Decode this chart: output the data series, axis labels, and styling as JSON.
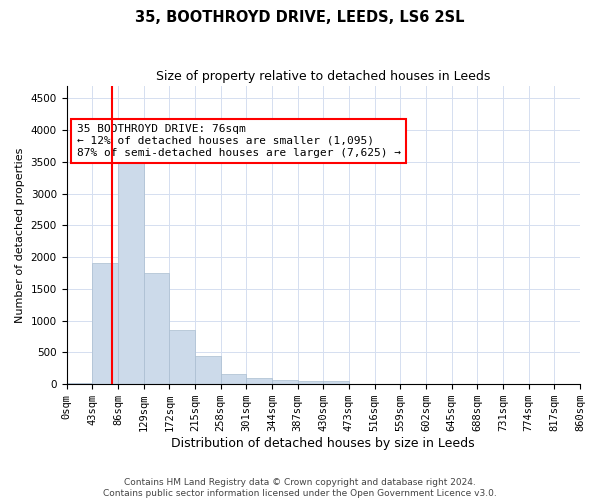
{
  "title_line1": "35, BOOTHROYD DRIVE, LEEDS, LS6 2SL",
  "title_line2": "Size of property relative to detached houses in Leeds",
  "xlabel": "Distribution of detached houses by size in Leeds",
  "ylabel": "Number of detached properties",
  "bar_values": [
    20,
    1900,
    3500,
    1750,
    850,
    440,
    155,
    95,
    65,
    55,
    45,
    0,
    0,
    0,
    0,
    0,
    0,
    0,
    0,
    0
  ],
  "bin_labels": [
    "0sqm",
    "43sqm",
    "86sqm",
    "129sqm",
    "172sqm",
    "215sqm",
    "258sqm",
    "301sqm",
    "344sqm",
    "387sqm",
    "430sqm",
    "473sqm",
    "516sqm",
    "559sqm",
    "602sqm",
    "645sqm",
    "688sqm",
    "731sqm",
    "774sqm",
    "817sqm",
    "860sqm"
  ],
  "bar_color": "#ccdaea",
  "bar_edge_color": "#aabdd0",
  "grid_color": "#d5dff0",
  "vline_x": 1.767,
  "annotation_text": "35 BOOTHROYD DRIVE: 76sqm\n← 12% of detached houses are smaller (1,095)\n87% of semi-detached houses are larger (7,625) →",
  "annotation_box_color": "white",
  "annotation_box_edge_color": "red",
  "vline_color": "red",
  "ylim": [
    0,
    4700
  ],
  "yticks": [
    0,
    500,
    1000,
    1500,
    2000,
    2500,
    3000,
    3500,
    4000,
    4500
  ],
  "footer_line1": "Contains HM Land Registry data © Crown copyright and database right 2024.",
  "footer_line2": "Contains public sector information licensed under the Open Government Licence v3.0.",
  "title_fontsize": 10.5,
  "subtitle_fontsize": 9,
  "ylabel_fontsize": 8,
  "xlabel_fontsize": 9,
  "annotation_fontsize": 8,
  "tick_fontsize": 7.5,
  "footer_fontsize": 6.5
}
